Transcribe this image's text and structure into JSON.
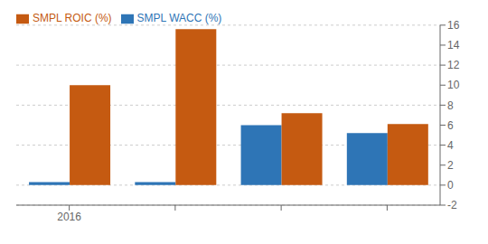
{
  "chart_data": {
    "type": "bar",
    "categories": [
      "2016",
      null,
      null,
      null
    ],
    "series": [
      {
        "name": "SMPL WACC  (%)",
        "color": "#2e75b6",
        "values": [
          0.3,
          0.3,
          6.0,
          5.2
        ]
      },
      {
        "name": "SMPL ROIC (%)",
        "color": "#c55a11",
        "values": [
          10.0,
          15.6,
          7.2,
          6.1
        ]
      }
    ],
    "ylim": [
      -2,
      16
    ],
    "yticks": [
      -2,
      0,
      2,
      4,
      6,
      8,
      10,
      12,
      14,
      16
    ],
    "grid": true,
    "legend": "upper left"
  }
}
